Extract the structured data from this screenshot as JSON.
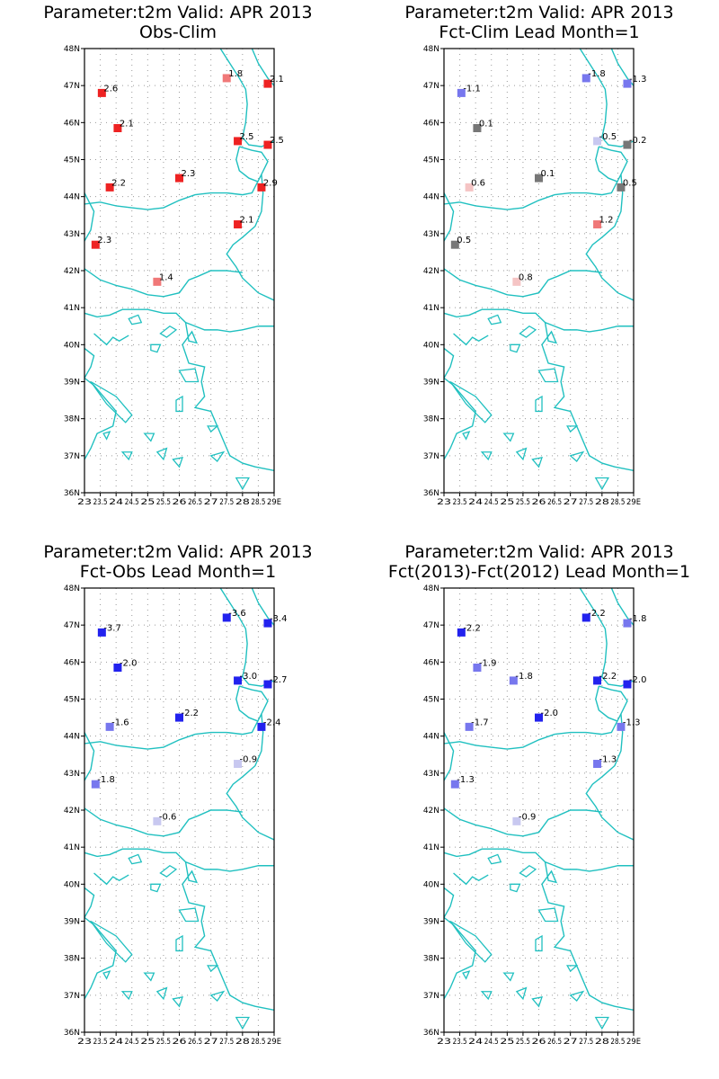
{
  "chart_data": [
    {
      "type": "scatter",
      "title": "Parameter:t2m Valid: APR 2013",
      "subtitle": "Obs-Clim",
      "xlim": [
        23,
        29
      ],
      "ylim": [
        36,
        48
      ],
      "x_ticks": [
        "23",
        "23.5",
        "24",
        "24.5",
        "25",
        "25.5",
        "26",
        "26.5",
        "27",
        "27.5",
        "28",
        "28.5",
        "29E"
      ],
      "y_ticks": [
        "36N",
        "37N",
        "38N",
        "39N",
        "40N",
        "41N",
        "42N",
        "43N",
        "44N",
        "45N",
        "46N",
        "47N",
        "48N"
      ],
      "grid": true,
      "points": [
        {
          "lon": 23.55,
          "lat": 46.8,
          "value": 2.6,
          "label": "2.6",
          "color": "#ee2222"
        },
        {
          "lon": 24.05,
          "lat": 45.85,
          "value": 2.1,
          "label": "2.1",
          "color": "#ee2222"
        },
        {
          "lon": 23.8,
          "lat": 44.25,
          "value": 2.2,
          "label": "2.2",
          "color": "#ee2222"
        },
        {
          "lon": 23.35,
          "lat": 42.7,
          "value": 2.3,
          "label": "2.3",
          "color": "#ee2222"
        },
        {
          "lon": 26.0,
          "lat": 44.5,
          "value": 2.3,
          "label": "2.3",
          "color": "#ee2222"
        },
        {
          "lon": 25.3,
          "lat": 41.7,
          "value": 1.4,
          "label": "1.4",
          "color": "#f07878"
        },
        {
          "lon": 27.5,
          "lat": 47.2,
          "value": 1.8,
          "label": "1.8",
          "color": "#f07878"
        },
        {
          "lon": 28.8,
          "lat": 47.05,
          "value": 2.1,
          "label": "2.1",
          "color": "#ee2222"
        },
        {
          "lon": 27.85,
          "lat": 45.5,
          "value": 2.5,
          "label": "2.5",
          "color": "#ee2222"
        },
        {
          "lon": 28.8,
          "lat": 45.4,
          "value": 2.5,
          "label": "2.5",
          "color": "#ee2222"
        },
        {
          "lon": 28.6,
          "lat": 44.25,
          "value": 2.9,
          "label": "2.9",
          "color": "#ee2222"
        },
        {
          "lon": 27.85,
          "lat": 43.25,
          "value": 2.1,
          "label": "2.1",
          "color": "#ee2222"
        }
      ]
    },
    {
      "type": "scatter",
      "title": "Parameter:t2m Valid: APR 2013",
      "subtitle": "Fct-Clim Lead Month=1",
      "xlim": [
        23,
        29
      ],
      "ylim": [
        36,
        48
      ],
      "x_ticks": [
        "23",
        "23.5",
        "24",
        "24.5",
        "25",
        "25.5",
        "26",
        "26.5",
        "27",
        "27.5",
        "28",
        "28.5",
        "29E"
      ],
      "y_ticks": [
        "36N",
        "37N",
        "38N",
        "39N",
        "40N",
        "41N",
        "42N",
        "43N",
        "44N",
        "45N",
        "46N",
        "47N",
        "48N"
      ],
      "grid": true,
      "points": [
        {
          "lon": 23.55,
          "lat": 46.8,
          "value": -1.1,
          "label": "-1.1",
          "color": "#7777ee"
        },
        {
          "lon": 24.05,
          "lat": 45.85,
          "value": 0.1,
          "label": "0.1",
          "color": "#777777"
        },
        {
          "lon": 23.8,
          "lat": 44.25,
          "value": 0.6,
          "label": "0.6",
          "color": "#f5c4c4"
        },
        {
          "lon": 23.35,
          "lat": 42.7,
          "value": 0.5,
          "label": "0.5",
          "color": "#777777"
        },
        {
          "lon": 26.0,
          "lat": 44.5,
          "value": 0.1,
          "label": "0.1",
          "color": "#777777"
        },
        {
          "lon": 25.3,
          "lat": 41.7,
          "value": 0.8,
          "label": "0.8",
          "color": "#f5c4c4"
        },
        {
          "lon": 27.5,
          "lat": 47.2,
          "value": -1.8,
          "label": "-1.8",
          "color": "#7777ee"
        },
        {
          "lon": 28.8,
          "lat": 47.05,
          "value": -1.3,
          "label": "-1.3",
          "color": "#7777ee"
        },
        {
          "lon": 27.85,
          "lat": 45.5,
          "value": -0.5,
          "label": "-0.5",
          "color": "#c8c8f0"
        },
        {
          "lon": 28.8,
          "lat": 45.4,
          "value": -0.2,
          "label": "-0.2",
          "color": "#777777"
        },
        {
          "lon": 28.6,
          "lat": 44.25,
          "value": 0.5,
          "label": "0.5",
          "color": "#777777"
        },
        {
          "lon": 27.85,
          "lat": 43.25,
          "value": 1.2,
          "label": "1.2",
          "color": "#f07878"
        }
      ]
    },
    {
      "type": "scatter",
      "title": "Parameter:t2m Valid: APR 2013",
      "subtitle": "Fct-Obs Lead Month=1",
      "xlim": [
        23,
        29
      ],
      "ylim": [
        36,
        48
      ],
      "x_ticks": [
        "23",
        "23.5",
        "24",
        "24.5",
        "25",
        "25.5",
        "26",
        "26.5",
        "27",
        "27.5",
        "28",
        "28.5",
        "29E"
      ],
      "y_ticks": [
        "36N",
        "37N",
        "38N",
        "39N",
        "40N",
        "41N",
        "42N",
        "43N",
        "44N",
        "45N",
        "46N",
        "47N",
        "48N"
      ],
      "grid": true,
      "points": [
        {
          "lon": 23.55,
          "lat": 46.8,
          "value": -3.7,
          "label": "-3.7",
          "color": "#2222ee"
        },
        {
          "lon": 24.05,
          "lat": 45.85,
          "value": -2.0,
          "label": "-2.0",
          "color": "#2222ee"
        },
        {
          "lon": 23.8,
          "lat": 44.25,
          "value": -1.6,
          "label": "-1.6",
          "color": "#7777ee"
        },
        {
          "lon": 23.35,
          "lat": 42.7,
          "value": -1.8,
          "label": "-1.8",
          "color": "#7777ee"
        },
        {
          "lon": 26.0,
          "lat": 44.5,
          "value": -2.2,
          "label": "-2.2",
          "color": "#2222ee"
        },
        {
          "lon": 25.3,
          "lat": 41.7,
          "value": -0.6,
          "label": "-0.6",
          "color": "#c8c8f0"
        },
        {
          "lon": 27.5,
          "lat": 47.2,
          "value": -3.6,
          "label": "-3.6",
          "color": "#2222ee"
        },
        {
          "lon": 28.8,
          "lat": 47.05,
          "value": -3.4,
          "label": "-3.4",
          "color": "#2222ee"
        },
        {
          "lon": 27.85,
          "lat": 45.5,
          "value": -3.0,
          "label": "-3.0",
          "color": "#2222ee"
        },
        {
          "lon": 28.8,
          "lat": 45.4,
          "value": -2.7,
          "label": "-2.7",
          "color": "#2222ee"
        },
        {
          "lon": 28.6,
          "lat": 44.25,
          "value": -2.4,
          "label": "-2.4",
          "color": "#2222ee"
        },
        {
          "lon": 27.85,
          "lat": 43.25,
          "value": -0.9,
          "label": "-0.9",
          "color": "#c8c8f0"
        }
      ]
    },
    {
      "type": "scatter",
      "title": "Parameter:t2m Valid: APR 2013",
      "subtitle": "Fct(2013)-Fct(2012) Lead Month=1",
      "xlim": [
        23,
        29
      ],
      "ylim": [
        36,
        48
      ],
      "x_ticks": [
        "23",
        "23.5",
        "24",
        "24.5",
        "25",
        "25.5",
        "26",
        "26.5",
        "27",
        "27.5",
        "28",
        "28.5",
        "29E"
      ],
      "y_ticks": [
        "36N",
        "37N",
        "38N",
        "39N",
        "40N",
        "41N",
        "42N",
        "43N",
        "44N",
        "45N",
        "46N",
        "47N",
        "48N"
      ],
      "grid": true,
      "points": [
        {
          "lon": 23.55,
          "lat": 46.8,
          "value": -2.2,
          "label": "-2.2",
          "color": "#2222ee"
        },
        {
          "lon": 24.05,
          "lat": 45.85,
          "value": -1.9,
          "label": "-1.9",
          "color": "#7777ee"
        },
        {
          "lon": 23.8,
          "lat": 44.25,
          "value": -1.7,
          "label": "-1.7",
          "color": "#7777ee"
        },
        {
          "lon": 23.35,
          "lat": 42.7,
          "value": -1.3,
          "label": "-1.3",
          "color": "#7777ee"
        },
        {
          "lon": 25.2,
          "lat": 45.5,
          "value": -1.8,
          "label": "-1.8",
          "color": "#7777ee"
        },
        {
          "lon": 26.0,
          "lat": 44.5,
          "value": -2.0,
          "label": "-2.0",
          "color": "#2222ee"
        },
        {
          "lon": 25.3,
          "lat": 41.7,
          "value": -0.9,
          "label": "-0.9",
          "color": "#c8c8f0"
        },
        {
          "lon": 27.5,
          "lat": 47.2,
          "value": -2.2,
          "label": "-2.2",
          "color": "#2222ee"
        },
        {
          "lon": 28.8,
          "lat": 47.05,
          "value": -1.8,
          "label": "-1.8",
          "color": "#7777ee"
        },
        {
          "lon": 27.85,
          "lat": 45.5,
          "value": -2.2,
          "label": "-2.2",
          "color": "#2222ee"
        },
        {
          "lon": 28.8,
          "lat": 45.4,
          "value": -2.0,
          "label": "-2.0",
          "color": "#2222ee"
        },
        {
          "lon": 28.6,
          "lat": 44.25,
          "value": -1.3,
          "label": "-1.3",
          "color": "#7777ee"
        },
        {
          "lon": 27.85,
          "lat": 43.25,
          "value": -1.3,
          "label": "-1.3",
          "color": "#7777ee"
        }
      ]
    }
  ],
  "colors": {
    "frame": "#000000",
    "grid": "#9a9a9a",
    "coastline": "#20c0c0",
    "background": "#ffffff"
  }
}
